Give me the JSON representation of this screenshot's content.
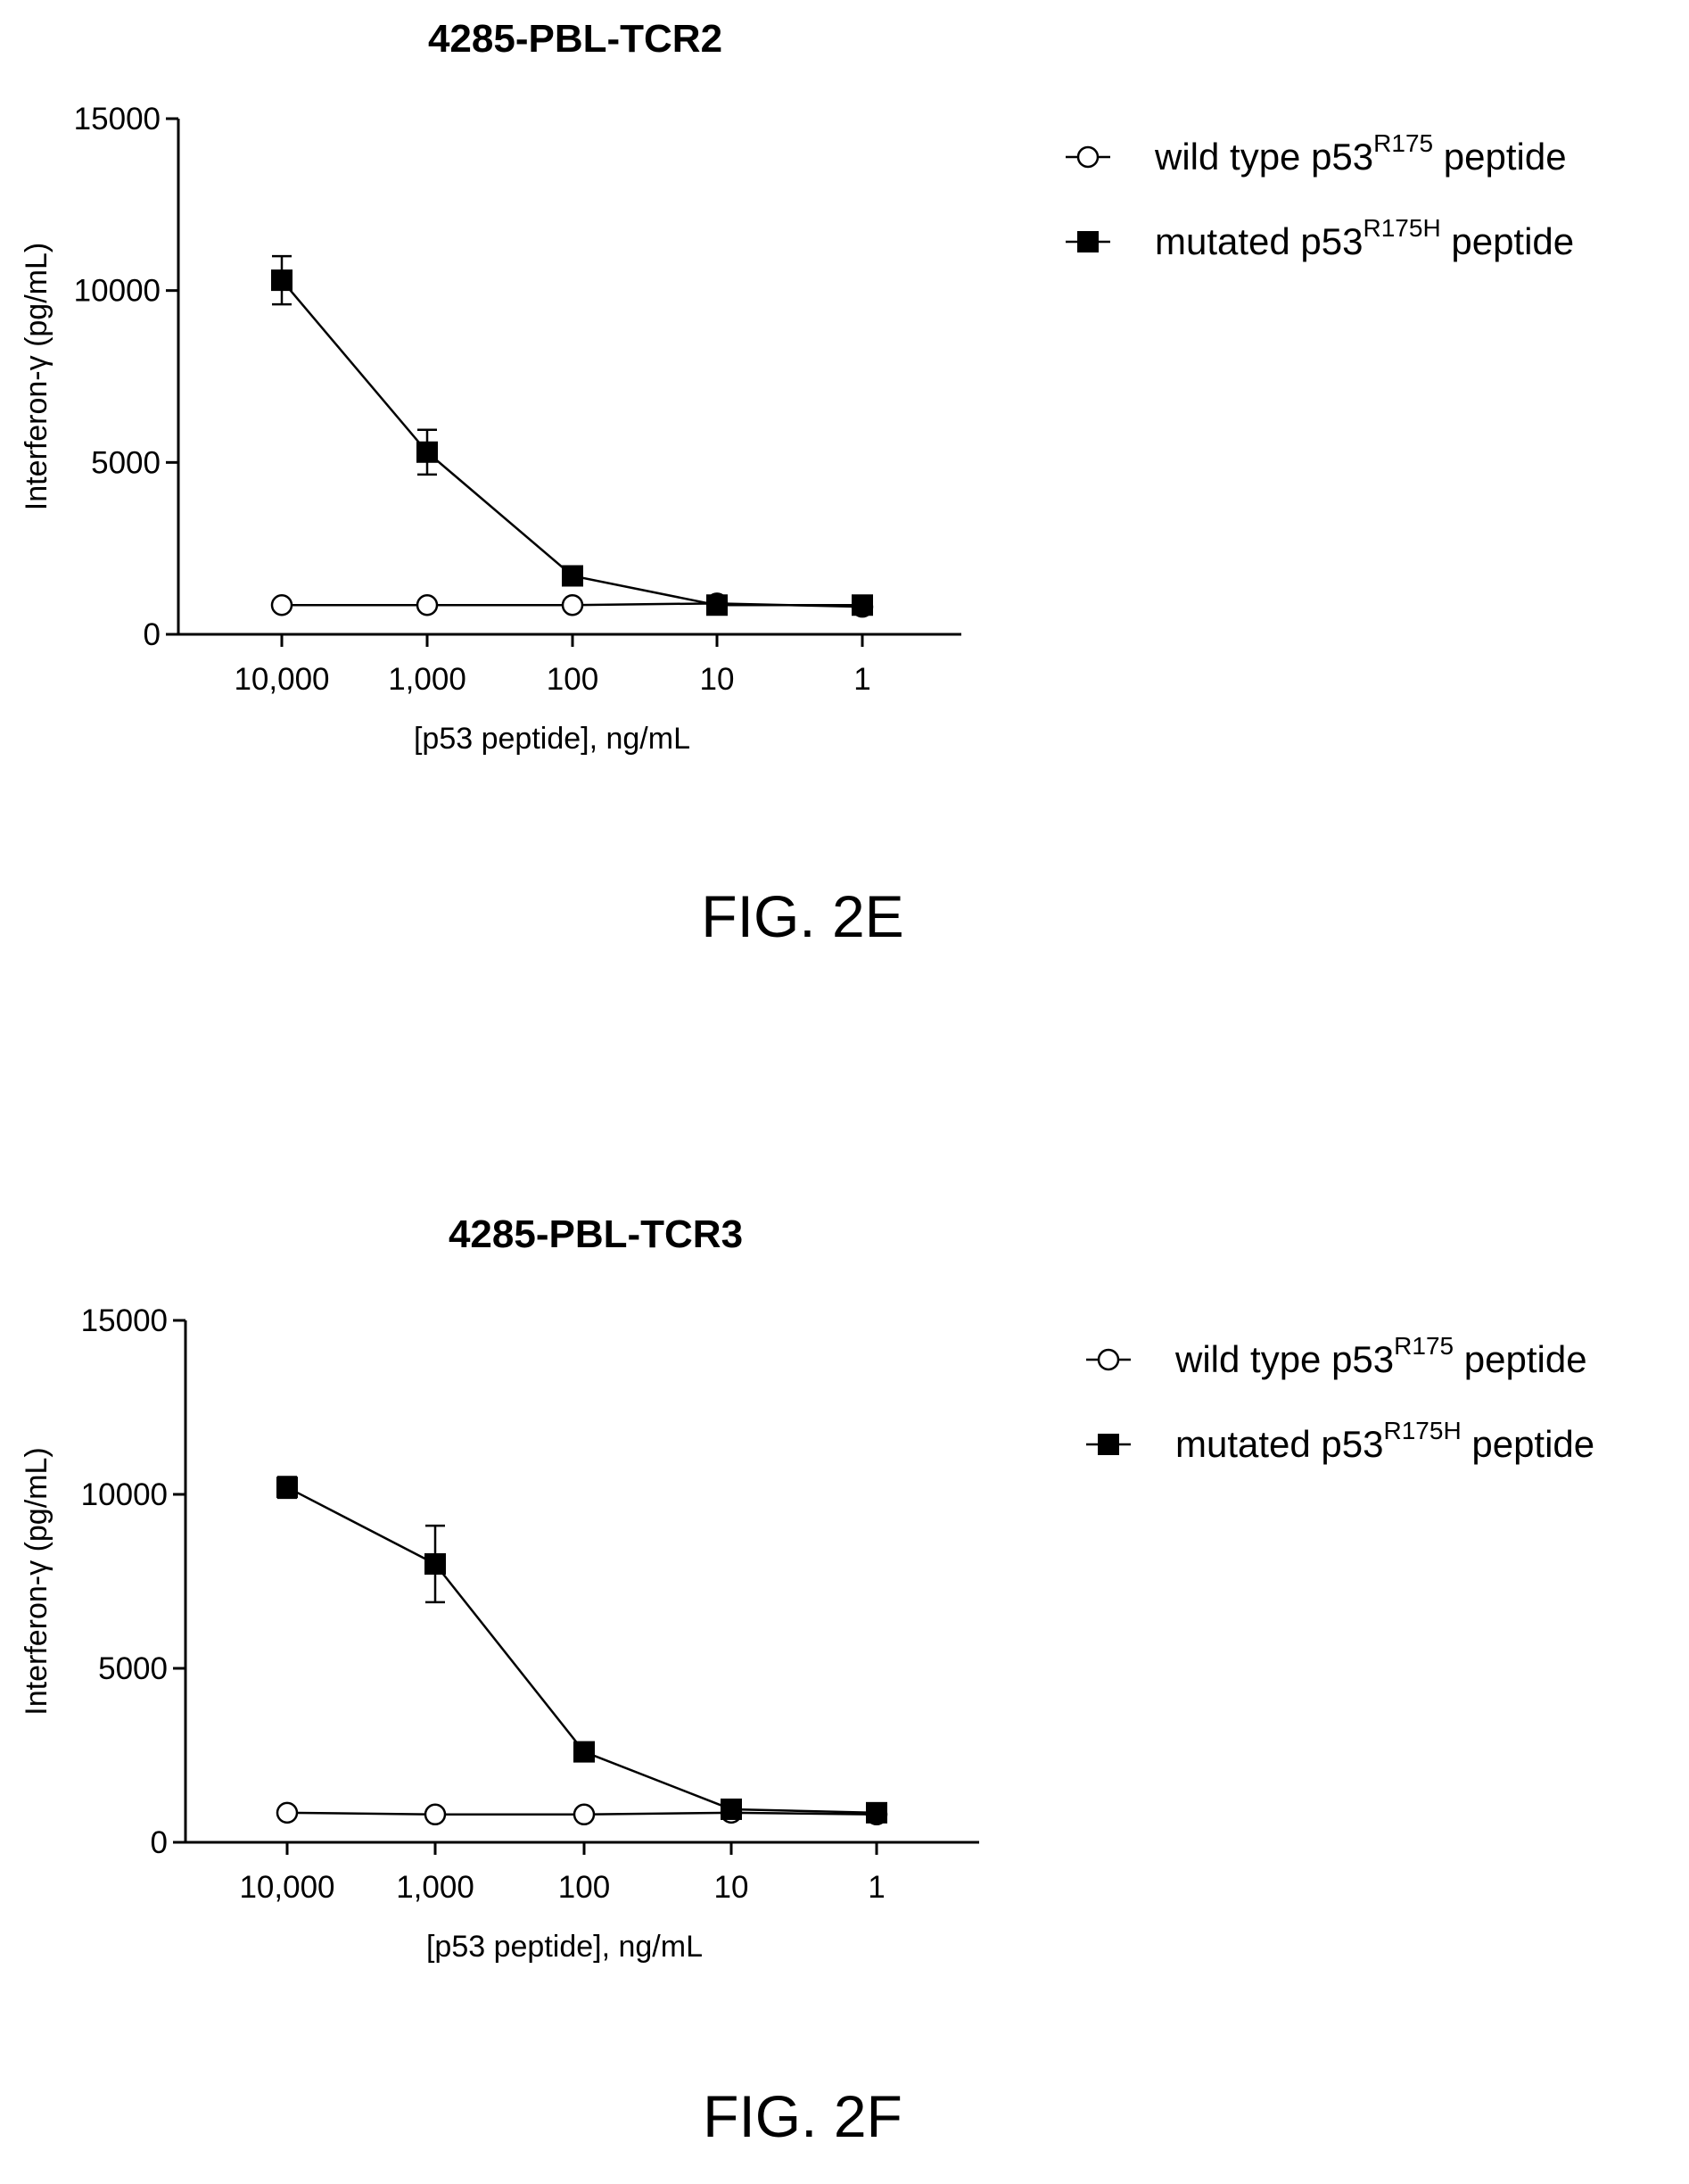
{
  "chart_data": [
    {
      "type": "line",
      "figure_label": "FIG. 2E",
      "title": "4285-PBL-TCR2",
      "xlabel": "[p53 peptide], ng/mL",
      "ylabel": "Interferon-γ (pg/mL)",
      "categories": [
        "10,000",
        "1,000",
        "100",
        "10",
        "1"
      ],
      "ylim": [
        0,
        15000
      ],
      "yticks": [
        "0",
        "5000",
        "10000",
        "15000"
      ],
      "legend_position": "right",
      "grid": false,
      "series": [
        {
          "name": "wild type p53",
          "name_sup": "R175",
          "name_suffix": " peptide",
          "marker": "open-circle",
          "values": [
            850,
            850,
            850,
            900,
            800
          ],
          "errors": [
            0,
            0,
            0,
            0,
            0
          ]
        },
        {
          "name": "mutated p53",
          "name_sup": "R175H",
          "name_suffix": " peptide",
          "marker": "filled-square",
          "values": [
            10300,
            5300,
            1700,
            850,
            850
          ],
          "errors": [
            700,
            650,
            0,
            0,
            0
          ]
        }
      ]
    },
    {
      "type": "line",
      "figure_label": "FIG. 2F",
      "title": "4285-PBL-TCR3",
      "xlabel": "[p53 peptide], ng/mL",
      "ylabel": "Interferon-γ (pg/mL)",
      "categories": [
        "10,000",
        "1,000",
        "100",
        "10",
        "1"
      ],
      "ylim": [
        0,
        15000
      ],
      "yticks": [
        "0",
        "5000",
        "10000",
        "15000"
      ],
      "legend_position": "right",
      "grid": false,
      "series": [
        {
          "name": "wild type p53",
          "name_sup": "R175",
          "name_suffix": " peptide",
          "marker": "open-circle",
          "values": [
            850,
            800,
            800,
            850,
            800
          ],
          "errors": [
            0,
            0,
            0,
            0,
            0
          ]
        },
        {
          "name": "mutated p53",
          "name_sup": "R175H",
          "name_suffix": " peptide",
          "marker": "filled-square",
          "values": [
            10200,
            8000,
            2600,
            950,
            850
          ],
          "errors": [
            300,
            1100,
            0,
            0,
            0
          ]
        }
      ]
    }
  ]
}
